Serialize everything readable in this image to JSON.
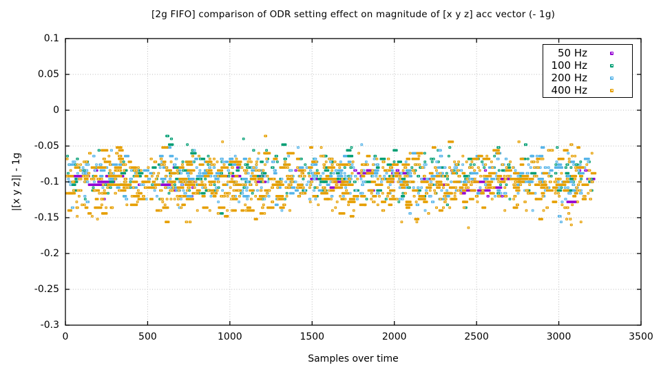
{
  "chart_data": {
    "type": "scatter",
    "title": "[2g FIFO] comparison of ODR setting effect on magnitude of [x y z] acc vector (- 1g)",
    "xlabel": "Samples over time",
    "ylabel": "|[x y z]| - 1g",
    "xlim": [
      0,
      3500
    ],
    "ylim": [
      -0.3,
      0.1
    ],
    "xticks": [
      0,
      500,
      1000,
      1500,
      2000,
      2500,
      3000,
      3500
    ],
    "yticks": [
      0.1,
      0.05,
      0,
      -0.05,
      -0.1,
      -0.15,
      -0.2,
      -0.25,
      -0.3
    ],
    "grid": true,
    "grid_style": "dotted gray at every major tick",
    "legend_position": "top-right inside plot, boxed",
    "x_data_range": [
      0,
      3200
    ],
    "band_value_range": [
      -0.165,
      -0.036
    ],
    "quantize_step": 0.004,
    "series": [
      {
        "name": "50 Hz",
        "color": "#9400d3",
        "marker": "small filled square with light center dot",
        "runs": 60,
        "run_len_samples": [
          6,
          110
        ],
        "mean": -0.098,
        "sd": 0.01,
        "note": "fewest points, long horizontal dash-like runs of repeated values"
      },
      {
        "name": "100 Hz",
        "color": "#009e73",
        "marker": "small filled square with light center dot",
        "runs": 300,
        "run_len_samples": [
          1,
          30
        ],
        "mean": -0.09,
        "sd": 0.017
      },
      {
        "name": "200 Hz",
        "color": "#56b4e9",
        "marker": "small filled square with light center dot",
        "runs": 500,
        "run_len_samples": [
          1,
          30
        ],
        "mean": -0.095,
        "sd": 0.017
      },
      {
        "name": "400 Hz",
        "color": "#e69f00",
        "marker": "small filled square with light center dot",
        "runs": 850,
        "run_len_samples": [
          1,
          40
        ],
        "mean": -0.101,
        "sd": 0.022,
        "note": "densest series, widest vertical spread"
      }
    ],
    "outlier_runs": [
      {
        "series": "100 Hz",
        "x": 608,
        "len": 12,
        "y": -0.037
      },
      {
        "series": "100 Hz",
        "x": 636,
        "len": 6,
        "y": -0.04
      },
      {
        "series": "50 Hz",
        "x": 3046,
        "len": 60,
        "y": -0.128
      },
      {
        "series": "200 Hz",
        "x": 2993,
        "len": 12,
        "y": -0.149
      },
      {
        "series": "200 Hz",
        "x": 3006,
        "len": 5,
        "y": -0.158
      },
      {
        "series": "400 Hz",
        "x": 3028,
        "len": 7,
        "y": -0.136
      },
      {
        "series": "400 Hz",
        "x": 3044,
        "len": 7,
        "y": -0.137
      },
      {
        "series": "400 Hz",
        "x": 3052,
        "len": 6,
        "y": -0.145
      },
      {
        "series": "400 Hz",
        "x": 3040,
        "len": 5,
        "y": -0.153
      },
      {
        "series": "400 Hz",
        "x": 3062,
        "len": 5,
        "y": -0.153
      },
      {
        "series": "400 Hz",
        "x": 3068,
        "len": 5,
        "y": -0.162
      }
    ]
  },
  "style": {
    "grid_color": "#b8b8b8",
    "border_color": "#000000",
    "background": "#ffffff"
  }
}
